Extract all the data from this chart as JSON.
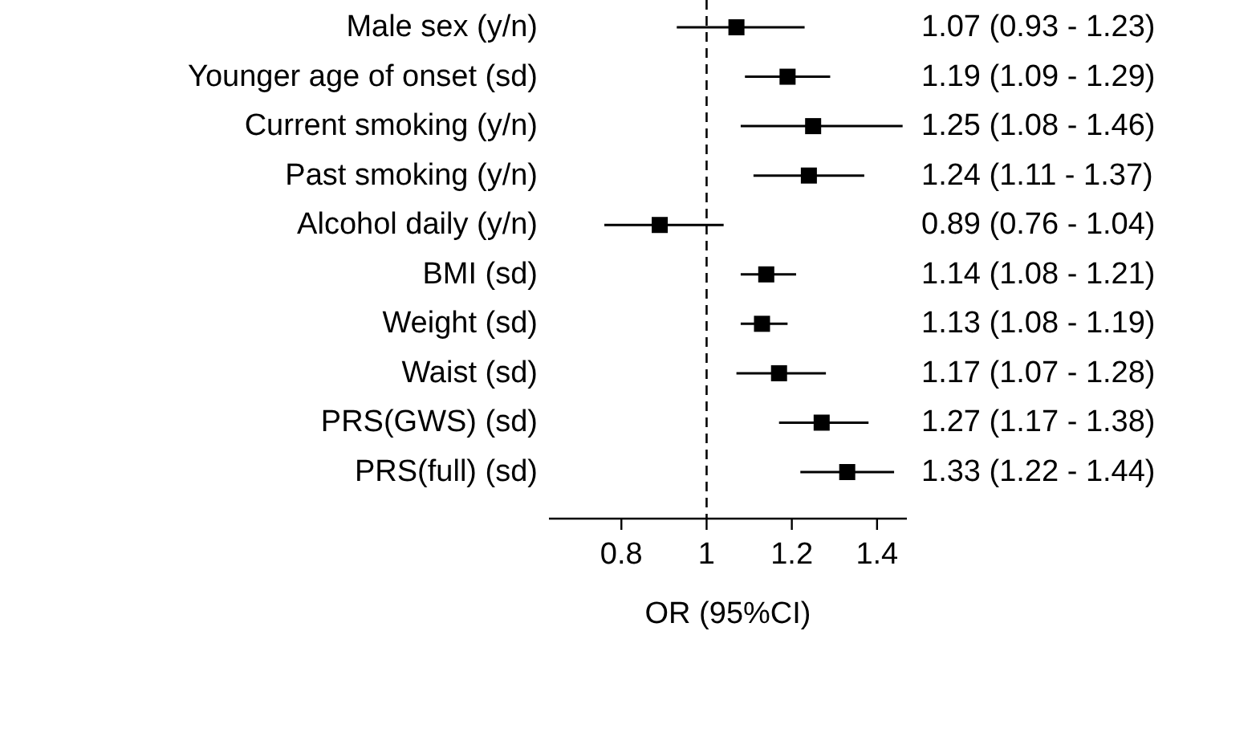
{
  "chart_data": {
    "type": "scatter",
    "orientation": "horizontal",
    "xlabel": "OR (95%CI)",
    "categories": [
      "Male sex (y/n)",
      "Younger age of onset (sd)",
      "Current smoking (y/n)",
      "Past smoking (y/n)",
      "Alcohol daily (y/n)",
      "BMI (sd)",
      "Weight (sd)",
      "Waist (sd)",
      "PRS(GWS) (sd)",
      "PRS(full) (sd)"
    ],
    "values": [
      1.07,
      1.19,
      1.25,
      1.24,
      0.89,
      1.14,
      1.13,
      1.17,
      1.27,
      1.33
    ],
    "errors": [
      [
        0.93,
        1.23
      ],
      [
        1.09,
        1.29
      ],
      [
        1.08,
        1.46
      ],
      [
        1.11,
        1.37
      ],
      [
        0.76,
        1.04
      ],
      [
        1.08,
        1.21
      ],
      [
        1.08,
        1.19
      ],
      [
        1.07,
        1.28
      ],
      [
        1.17,
        1.38
      ],
      [
        1.22,
        1.44
      ]
    ],
    "value_labels": [
      "1.07 (0.93 - 1.23)",
      "1.19 (1.09 - 1.29)",
      "1.25 (1.08 - 1.46)",
      "1.24 (1.11 - 1.37)",
      "0.89 (0.76 - 1.04)",
      "1.14 (1.08 - 1.21)",
      "1.13 (1.08 - 1.19)",
      "1.17 (1.07 - 1.28)",
      "1.27 (1.17 - 1.38)",
      "1.33 (1.22 - 1.44)"
    ],
    "color": "#000000",
    "marker": "square",
    "xlim": [
      0.63,
      1.47
    ],
    "xticks": [
      0.8,
      1,
      1.2,
      1.4
    ],
    "ref_lines": [
      {
        "axis": "x",
        "value": 1,
        "line_style": "dashed"
      }
    ],
    "grid": false
  }
}
